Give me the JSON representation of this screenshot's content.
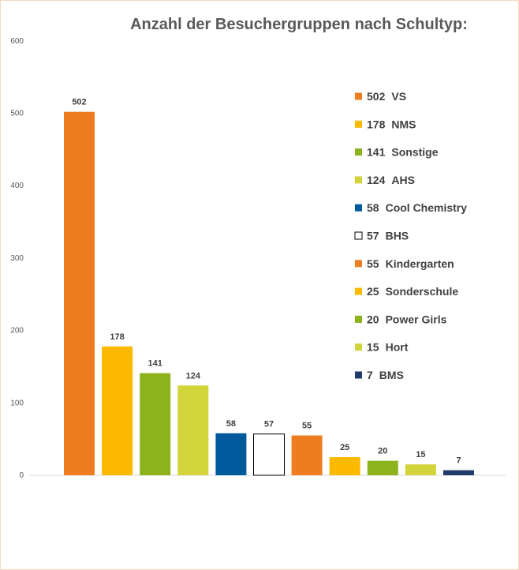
{
  "chart_data": {
    "type": "bar",
    "title": "Anzahl der Besuchergruppen nach Schultyp:",
    "xlabel": "",
    "ylabel": "",
    "ylim": [
      0,
      600
    ],
    "yticks": [
      0,
      100,
      200,
      300,
      400,
      500,
      600
    ],
    "grid": false,
    "legend_position": "right",
    "categories": [
      "VS",
      "NMS",
      "Sonstige",
      "AHS",
      "Cool Chemistry",
      "BHS",
      "Kindergarten",
      "Sonderschule",
      "Power Girls",
      "Hort",
      "BMS"
    ],
    "values": [
      502,
      178,
      141,
      124,
      58,
      57,
      55,
      25,
      20,
      15,
      7
    ],
    "colors": [
      "#ED7D1F",
      "#FBB900",
      "#8CB31C",
      "#D3D33A",
      "#005A9C",
      "#FFFFFF",
      "#ED7D1F",
      "#FBB900",
      "#8CB31C",
      "#D3D33A",
      "#1F3A6B"
    ],
    "legend": [
      {
        "value": "502",
        "label": "VS"
      },
      {
        "value": "178",
        "label": "NMS"
      },
      {
        "value": "141",
        "label": "Sonstige"
      },
      {
        "value": "124",
        "label": "AHS"
      },
      {
        "value": "58",
        "label": "Cool Chemistry"
      },
      {
        "value": "57",
        "label": "BHS"
      },
      {
        "value": "55",
        "label": "Kindergarten"
      },
      {
        "value": "25",
        "label": "Sonderschule"
      },
      {
        "value": "20",
        "label": "Power Girls"
      },
      {
        "value": "15",
        "label": "Hort"
      },
      {
        "value": "7",
        "label": "BMS"
      }
    ]
  }
}
